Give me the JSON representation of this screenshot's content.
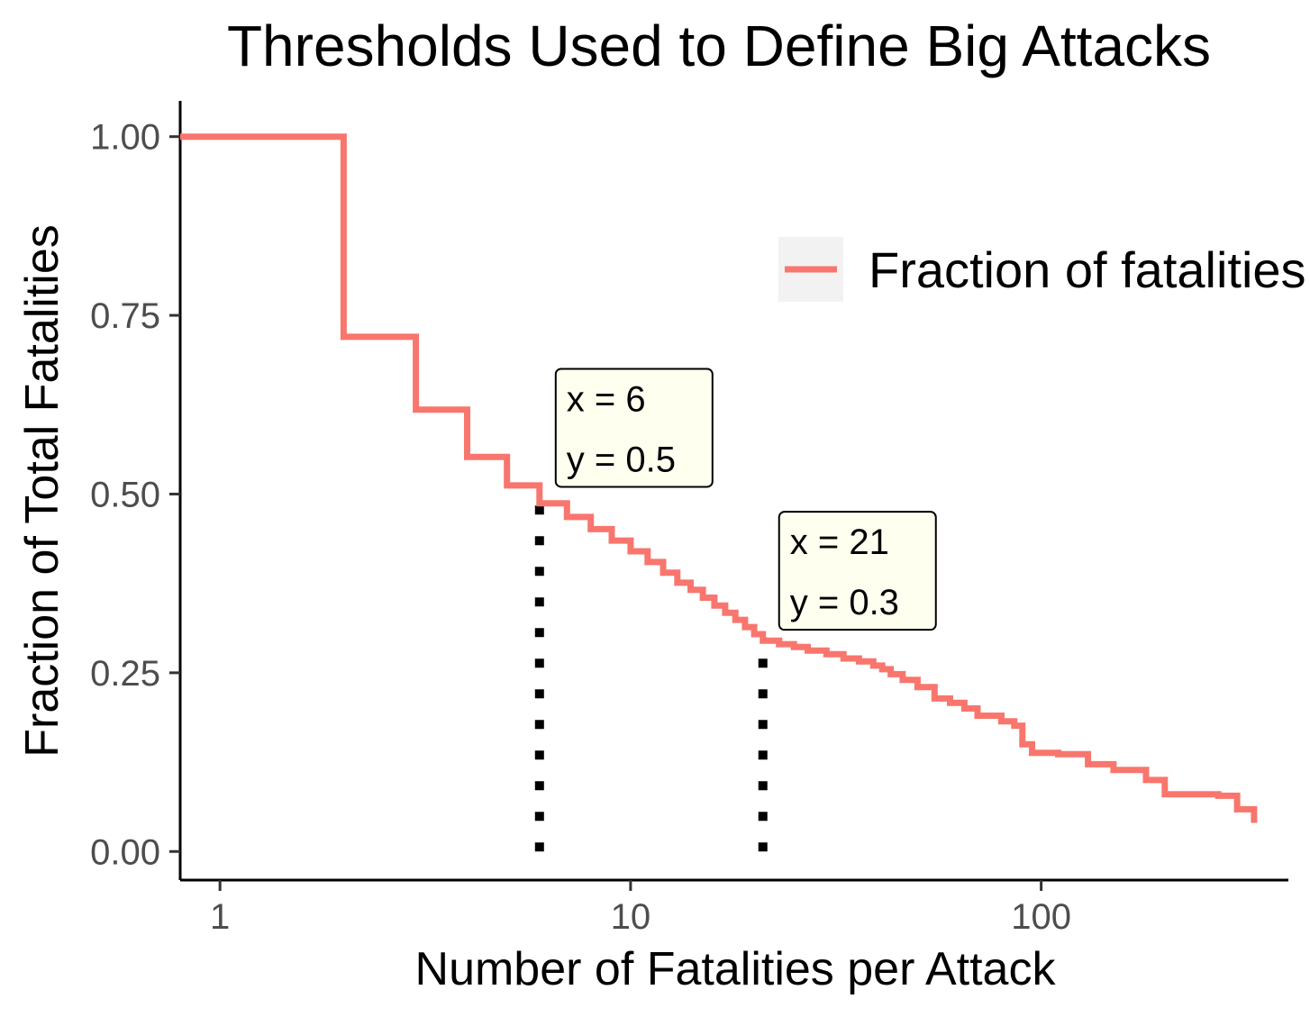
{
  "chart_data": {
    "type": "line",
    "title": "Thresholds Used to Define Big Attacks",
    "xlabel": "Number of Fatalities per Attack",
    "ylabel": "Fraction of Total Fatalities",
    "x_scale": "log10",
    "xlim": [
      0.8,
      400
    ],
    "ylim": [
      -0.04,
      1.05
    ],
    "x_ticks": [
      1,
      10,
      100
    ],
    "x_tick_labels": [
      "1",
      "10",
      "100"
    ],
    "y_ticks": [
      0,
      0.25,
      0.5,
      0.75,
      1.0
    ],
    "y_tick_labels": [
      "0.00",
      "0.25",
      "0.50",
      "0.75",
      "1.00"
    ],
    "grid": false,
    "legend": {
      "position": "right",
      "entries": [
        "Fraction of fatalities"
      ]
    },
    "series": [
      {
        "name": "Fraction of fatalities",
        "color": "#f8766d",
        "step": true,
        "x": [
          0.8,
          2,
          3,
          4,
          5,
          6,
          7,
          8,
          9,
          10,
          11,
          12,
          13,
          14,
          15,
          16,
          17,
          18,
          19,
          20,
          21,
          23,
          25,
          27,
          30,
          33,
          36,
          39,
          41,
          43,
          46,
          50,
          55,
          60,
          65,
          70,
          80,
          86,
          90,
          95,
          110,
          130,
          150,
          170,
          180,
          200,
          270,
          300,
          330
        ],
        "y": [
          1.0,
          0.72,
          0.618,
          0.552,
          0.512,
          0.487,
          0.468,
          0.451,
          0.435,
          0.42,
          0.405,
          0.39,
          0.376,
          0.366,
          0.355,
          0.344,
          0.334,
          0.324,
          0.314,
          0.304,
          0.295,
          0.29,
          0.286,
          0.281,
          0.276,
          0.27,
          0.266,
          0.26,
          0.255,
          0.248,
          0.24,
          0.23,
          0.214,
          0.208,
          0.2,
          0.19,
          0.182,
          0.176,
          0.15,
          0.138,
          0.136,
          0.122,
          0.114,
          0.114,
          0.1,
          0.08,
          0.078,
          0.059,
          0.04
        ]
      }
    ],
    "vlines": [
      {
        "x": 6,
        "y_from": 0,
        "y_to": 0.5,
        "style": "dotted",
        "color": "#000000"
      },
      {
        "x": 21,
        "y_from": 0,
        "y_to": 0.3,
        "style": "dotted",
        "color": "#000000"
      }
    ],
    "annotations": [
      {
        "x_at": 6,
        "y_at": 0.5,
        "lines": [
          "x = 6",
          "y = 0.5"
        ]
      },
      {
        "x_at": 21,
        "y_at": 0.3,
        "lines": [
          "x = 21",
          "y = 0.3"
        ]
      }
    ],
    "annotation_fill": "#fffff0"
  }
}
